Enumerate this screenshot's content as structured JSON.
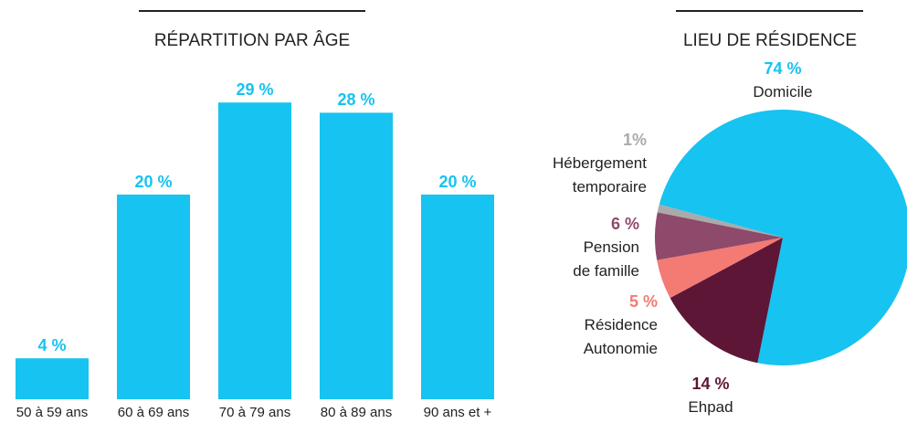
{
  "chart_data": [
    {
      "type": "bar",
      "title": "RÉPARTITION PAR ÂGE",
      "categories": [
        "50 à 59 ans",
        "60 à 69 ans",
        "70 à 79 ans",
        "80 à 89 ans",
        "90 ans et +"
      ],
      "values": [
        4,
        20,
        29,
        28,
        20
      ],
      "value_labels": [
        "4 %",
        "20 %",
        "29 %",
        "28 %",
        "20 %"
      ],
      "color": "#17c3f0"
    },
    {
      "type": "pie",
      "title": "LIEU DE RÉSIDENCE",
      "categories": [
        "Domicile",
        "Ehpad",
        "Résidence\nAutonomie",
        "Pension\nde famille",
        "Hébergement\ntemporaire"
      ],
      "values": [
        74,
        14,
        5,
        6,
        1
      ],
      "value_labels": [
        "74 %",
        "14 %",
        "5 %",
        "6 %",
        "1%"
      ],
      "colors": [
        "#17c3f0",
        "#5e1637",
        "#f47a74",
        "#8e4a6a",
        "#aaaaaa"
      ]
    }
  ]
}
